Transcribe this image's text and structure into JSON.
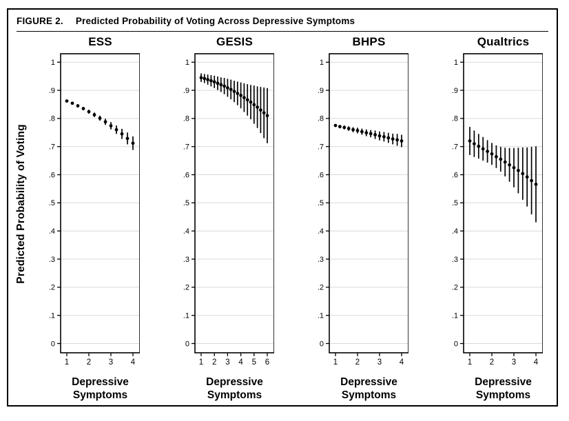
{
  "figure": {
    "label": "FIGURE 2.",
    "title": "Predicted Probability of Voting Across Depressive Symptoms",
    "y_axis_label": "Predicted Probability of Voting"
  },
  "style": {
    "ink_color": "#000000",
    "gridline_color": "#d9d9d9"
  },
  "axes": {
    "y_tick_values": [
      0,
      0.1,
      0.2,
      0.3,
      0.4,
      0.5,
      0.6,
      0.7,
      0.8,
      0.9,
      1
    ],
    "y_tick_labels": [
      "0",
      ".1",
      ".2",
      ".3",
      ".4",
      ".5",
      ".6",
      ".7",
      ".8",
      ".9",
      "1"
    ]
  },
  "chart_data": [
    {
      "type": "scatter",
      "title": "ESS",
      "xlabel": "Depressive Symptoms",
      "ylim": [
        0,
        1
      ],
      "grid": true,
      "x_ticks": [
        1,
        2,
        3,
        4
      ],
      "x": [
        1,
        1.25,
        1.5,
        1.75,
        2,
        2.25,
        2.5,
        2.75,
        3,
        3.25,
        3.5,
        3.75,
        4
      ],
      "y": [
        0.862,
        0.854,
        0.845,
        0.835,
        0.824,
        0.813,
        0.801,
        0.788,
        0.774,
        0.76,
        0.745,
        0.729,
        0.712
      ],
      "ci_low": [
        0.857,
        0.849,
        0.839,
        0.829,
        0.817,
        0.805,
        0.792,
        0.777,
        0.761,
        0.745,
        0.727,
        0.708,
        0.688
      ],
      "ci_high": [
        0.867,
        0.859,
        0.851,
        0.841,
        0.831,
        0.821,
        0.81,
        0.799,
        0.787,
        0.775,
        0.763,
        0.75,
        0.736
      ]
    },
    {
      "type": "scatter",
      "title": "GESIS",
      "xlabel": "Depressive Symptoms",
      "ylim": [
        0,
        1
      ],
      "grid": true,
      "x_ticks": [
        1,
        2,
        3,
        4,
        5,
        6
      ],
      "x": [
        1,
        1.25,
        1.5,
        1.75,
        2,
        2.25,
        2.5,
        2.75,
        3,
        3.25,
        3.5,
        3.75,
        4,
        4.25,
        4.5,
        4.75,
        5,
        5.25,
        5.5,
        5.75,
        6
      ],
      "y": [
        0.945,
        0.942,
        0.938,
        0.934,
        0.93,
        0.925,
        0.92,
        0.915,
        0.909,
        0.903,
        0.896,
        0.889,
        0.882,
        0.874,
        0.866,
        0.858,
        0.849,
        0.84,
        0.83,
        0.82,
        0.81
      ],
      "ci_low": [
        0.93,
        0.926,
        0.92,
        0.914,
        0.908,
        0.901,
        0.894,
        0.886,
        0.877,
        0.868,
        0.858,
        0.847,
        0.836,
        0.823,
        0.81,
        0.797,
        0.781,
        0.766,
        0.748,
        0.73,
        0.712
      ],
      "ci_high": [
        0.96,
        0.958,
        0.956,
        0.954,
        0.952,
        0.949,
        0.946,
        0.944,
        0.941,
        0.938,
        0.934,
        0.931,
        0.928,
        0.925,
        0.922,
        0.919,
        0.917,
        0.914,
        0.912,
        0.91,
        0.908
      ]
    },
    {
      "type": "scatter",
      "title": "BHPS",
      "xlabel": "Depressive Symptoms",
      "ylim": [
        0,
        1
      ],
      "grid": true,
      "x_ticks": [
        1,
        2,
        3,
        4
      ],
      "x": [
        1,
        1.2,
        1.4,
        1.6,
        1.8,
        2,
        2.2,
        2.4,
        2.6,
        2.8,
        3,
        3.2,
        3.4,
        3.6,
        3.8,
        4
      ],
      "y": [
        0.775,
        0.771,
        0.768,
        0.764,
        0.76,
        0.757,
        0.753,
        0.749,
        0.746,
        0.742,
        0.738,
        0.735,
        0.731,
        0.727,
        0.724,
        0.72
      ],
      "ci_low": [
        0.77,
        0.765,
        0.761,
        0.756,
        0.751,
        0.747,
        0.742,
        0.737,
        0.733,
        0.727,
        0.722,
        0.718,
        0.713,
        0.708,
        0.703,
        0.698
      ],
      "ci_high": [
        0.78,
        0.777,
        0.775,
        0.772,
        0.769,
        0.767,
        0.764,
        0.761,
        0.759,
        0.757,
        0.754,
        0.752,
        0.749,
        0.746,
        0.745,
        0.742
      ]
    },
    {
      "type": "scatter",
      "title": "Qualtrics",
      "xlabel": "Depressive Symptoms",
      "ylim": [
        0,
        1
      ],
      "grid": true,
      "x_ticks": [
        1,
        2,
        3,
        4
      ],
      "x": [
        1,
        1.2,
        1.4,
        1.6,
        1.8,
        2,
        2.2,
        2.4,
        2.6,
        2.8,
        3,
        3.2,
        3.4,
        3.6,
        3.8,
        4
      ],
      "y": [
        0.72,
        0.71,
        0.701,
        0.692,
        0.683,
        0.674,
        0.664,
        0.655,
        0.645,
        0.635,
        0.625,
        0.615,
        0.604,
        0.592,
        0.579,
        0.566
      ],
      "ci_low": [
        0.67,
        0.663,
        0.657,
        0.65,
        0.643,
        0.635,
        0.624,
        0.611,
        0.594,
        0.575,
        0.555,
        0.534,
        0.511,
        0.487,
        0.459,
        0.431
      ],
      "ci_high": [
        0.77,
        0.757,
        0.745,
        0.734,
        0.723,
        0.713,
        0.704,
        0.699,
        0.696,
        0.695,
        0.695,
        0.696,
        0.697,
        0.697,
        0.699,
        0.701
      ]
    }
  ]
}
